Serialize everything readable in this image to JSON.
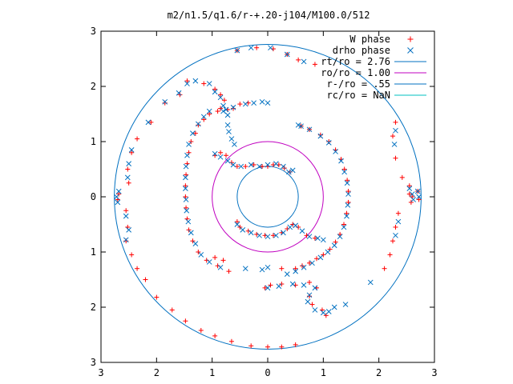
{
  "chart_data": {
    "type": "scatter",
    "title": "m2/n1.5/q1.6/r-+.20-j104/M100.0/512",
    "xlabel": "",
    "ylabel": "",
    "xlim": [
      -3,
      3
    ],
    "ylim": [
      -3,
      3
    ],
    "x_ticks": [
      "3",
      "2",
      "1",
      "0",
      "1",
      "2",
      "3"
    ],
    "y_ticks": [
      "3",
      "2",
      "1",
      "0",
      "1",
      "2",
      "3"
    ],
    "grid": false,
    "legend_position": "top-right",
    "series": [
      {
        "name": "W phase",
        "kind": "points",
        "marker": "plus",
        "color": "#ff0000",
        "points": [
          [
            -0.35,
            1.7
          ],
          [
            -0.5,
            1.68
          ],
          [
            -0.62,
            1.6
          ],
          [
            -0.72,
            1.58
          ],
          [
            -0.9,
            1.55
          ],
          [
            -1.05,
            1.5
          ],
          [
            -1.15,
            1.4
          ],
          [
            -1.25,
            1.3
          ],
          [
            -1.3,
            1.15
          ],
          [
            -1.38,
            1.0
          ],
          [
            -1.42,
            0.8
          ],
          [
            -1.45,
            0.6
          ],
          [
            -1.47,
            0.4
          ],
          [
            -1.48,
            0.2
          ],
          [
            -1.48,
            0.0
          ],
          [
            -1.47,
            -0.2
          ],
          [
            -1.45,
            -0.4
          ],
          [
            -1.42,
            -0.6
          ],
          [
            -1.35,
            -0.8
          ],
          [
            -1.25,
            -1.0
          ],
          [
            -1.1,
            -1.15
          ],
          [
            -0.9,
            -1.25
          ],
          [
            -0.7,
            -1.35
          ],
          [
            0.5,
            -1.3
          ],
          [
            0.62,
            -1.25
          ],
          [
            0.75,
            -1.2
          ],
          [
            0.88,
            -1.12
          ],
          [
            1.0,
            -1.05
          ],
          [
            1.12,
            -0.95
          ],
          [
            1.22,
            -0.82
          ],
          [
            1.3,
            -0.68
          ],
          [
            1.37,
            -0.5
          ],
          [
            1.42,
            -0.3
          ],
          [
            1.45,
            -0.1
          ],
          [
            1.45,
            0.1
          ],
          [
            1.43,
            0.3
          ],
          [
            1.38,
            0.5
          ],
          [
            1.32,
            0.68
          ],
          [
            1.22,
            0.85
          ],
          [
            1.1,
            1.0
          ],
          [
            0.95,
            1.12
          ],
          [
            0.75,
            1.22
          ],
          [
            0.6,
            1.28
          ],
          [
            -0.95,
            0.75
          ],
          [
            -0.85,
            0.8
          ],
          [
            -0.75,
            0.75
          ],
          [
            -0.65,
            0.62
          ],
          [
            -0.55,
            0.55
          ],
          [
            -0.4,
            0.55
          ],
          [
            -0.25,
            0.58
          ],
          [
            -0.1,
            0.55
          ],
          [
            0.0,
            0.55
          ],
          [
            0.1,
            0.58
          ],
          [
            0.2,
            0.58
          ],
          [
            0.3,
            0.52
          ],
          [
            0.4,
            0.45
          ],
          [
            -0.55,
            -0.45
          ],
          [
            -0.5,
            -0.55
          ],
          [
            -0.35,
            -0.62
          ],
          [
            -0.2,
            -0.68
          ],
          [
            -0.05,
            -0.7
          ],
          [
            0.1,
            -0.7
          ],
          [
            0.25,
            -0.65
          ],
          [
            0.35,
            -0.58
          ],
          [
            0.45,
            -0.5
          ],
          [
            0.55,
            -0.55
          ],
          [
            0.7,
            -0.7
          ],
          [
            0.85,
            -0.75
          ],
          [
            -1.45,
            2.1
          ],
          [
            -1.15,
            2.05
          ],
          [
            -0.95,
            1.95
          ],
          [
            -0.85,
            1.85
          ],
          [
            -0.78,
            1.75
          ],
          [
            -0.85,
            1.6
          ],
          [
            -0.05,
            -1.65
          ],
          [
            0.05,
            -1.6
          ],
          [
            0.25,
            -1.58
          ],
          [
            0.5,
            -1.6
          ],
          [
            0.75,
            -1.55
          ],
          [
            0.88,
            -1.65
          ],
          [
            0.75,
            -1.8
          ],
          [
            0.8,
            -1.95
          ],
          [
            0.98,
            -2.05
          ],
          [
            1.05,
            -2.15
          ],
          [
            -2.7,
            -0.05
          ],
          [
            -2.68,
            0.05
          ],
          [
            -2.55,
            -0.25
          ],
          [
            -2.52,
            -0.55
          ],
          [
            -2.55,
            -0.8
          ],
          [
            -2.45,
            -1.05
          ],
          [
            -2.35,
            -1.3
          ],
          [
            -2.2,
            -1.5
          ],
          [
            -2.0,
            -1.82
          ],
          [
            -1.72,
            -2.05
          ],
          [
            -1.48,
            -2.25
          ],
          [
            -1.2,
            -2.42
          ],
          [
            -0.95,
            -2.52
          ],
          [
            -0.65,
            -2.62
          ],
          [
            -0.3,
            -2.7
          ],
          [
            0.0,
            -2.72
          ],
          [
            0.25,
            -2.72
          ],
          [
            0.5,
            -2.68
          ],
          [
            -2.5,
            0.25
          ],
          [
            -2.52,
            0.5
          ],
          [
            -2.45,
            0.8
          ],
          [
            -2.35,
            1.05
          ],
          [
            -2.1,
            1.35
          ],
          [
            -1.85,
            1.7
          ],
          [
            -1.58,
            1.85
          ],
          [
            -0.55,
            2.65
          ],
          [
            -0.2,
            2.7
          ],
          [
            0.1,
            2.68
          ],
          [
            0.35,
            2.58
          ],
          [
            0.55,
            2.48
          ],
          [
            0.85,
            2.4
          ],
          [
            2.55,
            0.2
          ],
          [
            2.55,
            0.05
          ],
          [
            2.58,
            -0.1
          ],
          [
            2.6,
            0.0
          ],
          [
            2.7,
            0.1
          ],
          [
            2.72,
            -0.05
          ],
          [
            2.42,
            0.35
          ],
          [
            2.3,
            0.7
          ],
          [
            2.3,
            1.35
          ],
          [
            2.25,
            1.1
          ],
          [
            2.35,
            -0.3
          ],
          [
            2.3,
            -0.55
          ],
          [
            2.25,
            -0.8
          ],
          [
            2.2,
            -1.05
          ],
          [
            2.1,
            -1.3
          ],
          [
            -0.8,
            -1.15
          ],
          [
            -0.95,
            -1.1
          ],
          [
            0.25,
            -1.3
          ]
        ]
      },
      {
        "name": "drho phase",
        "kind": "points",
        "marker": "cross",
        "color": "#0070c0",
        "points": [
          [
            -1.45,
            2.05
          ],
          [
            -1.3,
            2.1
          ],
          [
            -1.05,
            2.05
          ],
          [
            -0.95,
            1.9
          ],
          [
            -0.85,
            1.8
          ],
          [
            -0.8,
            1.65
          ],
          [
            -0.75,
            1.58
          ],
          [
            -0.72,
            1.48
          ],
          [
            -0.72,
            1.3
          ],
          [
            -0.7,
            1.18
          ],
          [
            -0.65,
            1.05
          ],
          [
            -0.6,
            0.95
          ],
          [
            -1.05,
            1.55
          ],
          [
            -1.15,
            1.45
          ],
          [
            -1.25,
            1.32
          ],
          [
            -1.35,
            1.15
          ],
          [
            -1.42,
            0.95
          ],
          [
            -1.45,
            0.75
          ],
          [
            -1.47,
            0.55
          ],
          [
            -1.48,
            0.35
          ],
          [
            -1.48,
            0.15
          ],
          [
            -1.47,
            -0.05
          ],
          [
            -1.46,
            -0.25
          ],
          [
            -1.43,
            -0.45
          ],
          [
            -1.38,
            -0.65
          ],
          [
            -1.3,
            -0.85
          ],
          [
            -1.2,
            -1.05
          ],
          [
            -1.05,
            -1.18
          ],
          [
            -0.85,
            -1.28
          ],
          [
            -0.8,
            1.55
          ],
          [
            -0.62,
            1.62
          ],
          [
            -0.4,
            1.68
          ],
          [
            -0.25,
            1.7
          ],
          [
            -0.1,
            1.72
          ],
          [
            0.0,
            1.7
          ],
          [
            -0.95,
            0.78
          ],
          [
            -0.85,
            0.72
          ],
          [
            -0.72,
            0.65
          ],
          [
            -0.62,
            0.58
          ],
          [
            -0.48,
            0.55
          ],
          [
            -0.3,
            0.58
          ],
          [
            -0.15,
            0.55
          ],
          [
            0.0,
            0.58
          ],
          [
            0.15,
            0.6
          ],
          [
            0.28,
            0.55
          ],
          [
            0.38,
            0.45
          ],
          [
            0.45,
            0.48
          ],
          [
            -0.55,
            -0.5
          ],
          [
            -0.45,
            -0.6
          ],
          [
            -0.3,
            -0.65
          ],
          [
            -0.15,
            -0.7
          ],
          [
            0.0,
            -0.72
          ],
          [
            0.15,
            -0.7
          ],
          [
            0.28,
            -0.65
          ],
          [
            0.4,
            -0.55
          ],
          [
            0.5,
            -0.52
          ],
          [
            0.62,
            -0.62
          ],
          [
            0.75,
            -0.72
          ],
          [
            0.9,
            -0.75
          ],
          [
            1.0,
            -0.78
          ],
          [
            0.55,
            1.3
          ],
          [
            0.75,
            1.22
          ],
          [
            0.95,
            1.1
          ],
          [
            1.1,
            0.98
          ],
          [
            1.22,
            0.82
          ],
          [
            1.32,
            0.65
          ],
          [
            1.38,
            0.45
          ],
          [
            1.43,
            0.25
          ],
          [
            1.45,
            0.05
          ],
          [
            1.44,
            -0.15
          ],
          [
            1.42,
            -0.35
          ],
          [
            1.37,
            -0.55
          ],
          [
            1.3,
            -0.72
          ],
          [
            1.2,
            -0.88
          ],
          [
            1.08,
            -1.0
          ],
          [
            0.95,
            -1.1
          ],
          [
            0.8,
            -1.2
          ],
          [
            0.65,
            -1.28
          ],
          [
            0.5,
            -1.35
          ],
          [
            0.35,
            -1.4
          ],
          [
            0.0,
            -1.65
          ],
          [
            0.2,
            -1.62
          ],
          [
            0.45,
            -1.58
          ],
          [
            0.65,
            -1.6
          ],
          [
            0.85,
            -1.65
          ],
          [
            0.75,
            -1.78
          ],
          [
            0.72,
            -1.9
          ],
          [
            0.85,
            -2.05
          ],
          [
            1.0,
            -2.1
          ],
          [
            1.1,
            -2.08
          ],
          [
            1.2,
            -2.0
          ],
          [
            -2.7,
            -0.1
          ],
          [
            -2.72,
            0.0
          ],
          [
            -2.68,
            0.1
          ],
          [
            -2.52,
            0.35
          ],
          [
            -2.5,
            0.6
          ],
          [
            -2.45,
            0.85
          ],
          [
            -2.55,
            -0.35
          ],
          [
            -2.5,
            -0.6
          ],
          [
            -2.55,
            -0.78
          ],
          [
            2.55,
            0.15
          ],
          [
            2.6,
            0.05
          ],
          [
            2.62,
            -0.05
          ],
          [
            2.72,
            0.0
          ],
          [
            2.7,
            0.1
          ],
          [
            2.3,
            1.2
          ],
          [
            2.28,
            0.95
          ],
          [
            2.35,
            -0.45
          ],
          [
            2.3,
            -0.7
          ],
          [
            -0.4,
            -1.3
          ],
          [
            -0.1,
            -1.32
          ],
          [
            0.0,
            -1.28
          ],
          [
            1.4,
            -1.95
          ],
          [
            1.85,
            -1.55
          ],
          [
            0.6,
            1.28
          ],
          [
            -2.15,
            1.35
          ],
          [
            -1.85,
            1.72
          ],
          [
            -1.6,
            1.88
          ],
          [
            -0.55,
            2.65
          ],
          [
            -0.3,
            2.7
          ],
          [
            0.05,
            2.7
          ],
          [
            0.35,
            2.58
          ],
          [
            0.65,
            2.45
          ]
        ]
      },
      {
        "name": "rt/ro = 2.76",
        "kind": "circle",
        "radius": 2.76,
        "color": "#0070c0"
      },
      {
        "name": "ro/ro = 1.00",
        "kind": "circle",
        "radius": 1.0,
        "color": "#c000c0"
      },
      {
        "name": "r-/ro = .55",
        "kind": "circle",
        "radius": 0.55,
        "color": "#0070c0"
      },
      {
        "name": "rc/ro = NaN",
        "kind": "circle",
        "radius": null,
        "color": "#00c0c0"
      }
    ]
  }
}
